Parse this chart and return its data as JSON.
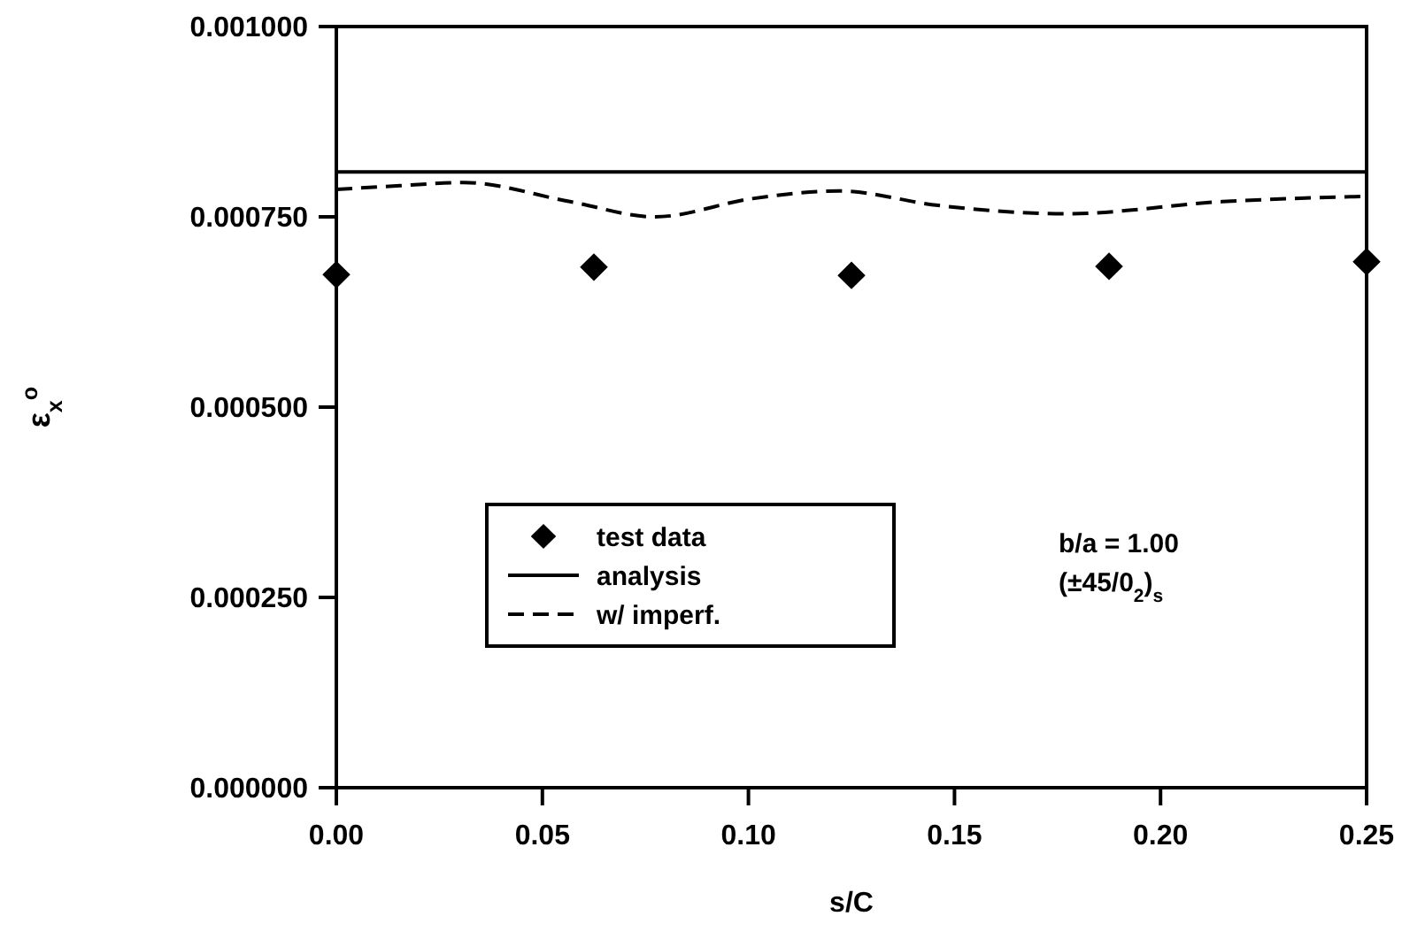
{
  "chart_data": {
    "type": "scatter",
    "xlabel": "s/C",
    "ylabel": "ε$_{x}$$^{o}$",
    "xlim": [
      0,
      0.25
    ],
    "xticks": [
      {
        "value": 0,
        "label": "0.00"
      },
      {
        "value": 0.05,
        "label": "0.05"
      },
      {
        "value": 0.1,
        "label": "0.10"
      },
      {
        "value": 0.15,
        "label": "0.15"
      },
      {
        "value": 0.2,
        "label": "0.20"
      },
      {
        "value": 0.25,
        "label": "0.25"
      }
    ],
    "ylim": [
      0,
      0.001
    ],
    "yticks": [
      {
        "value": 0,
        "label": "0.000000"
      },
      {
        "value": 0.00025,
        "label": "0.000250"
      },
      {
        "value": 0.0005,
        "label": "0.000500"
      },
      {
        "value": 0.00075,
        "label": "0.000750"
      },
      {
        "value": 0.001,
        "label": "0.001000"
      }
    ],
    "grid": false,
    "legend": "bottom left",
    "annotations": [
      "b/a = 1.00",
      "(±45/0$_{2}$)$_{s}$"
    ],
    "series": [
      {
        "name": "test data",
        "marker": "diamond",
        "color": "#000000",
        "x": [
          0,
          0.0625,
          0.125,
          0.1875,
          0.25
        ],
        "values": [
          0.000674,
          0.000684,
          0.000673,
          0.000685,
          0.000691
        ]
      },
      {
        "name": "analysis",
        "type": "line",
        "marker": "none",
        "line_style": "solid",
        "color": "#000000",
        "x": [
          0,
          0.25
        ],
        "values": [
          0.000809,
          0.000809
        ]
      },
      {
        "name": "w/ imperf.",
        "type": "line",
        "marker": "none",
        "line_style": "dashed",
        "color": "#000000",
        "x": [
          0,
          0.0155,
          0.031,
          0.0567,
          0.0773,
          0.101,
          0.122,
          0.146,
          0.177,
          0.215,
          0.25
        ],
        "values": [
          0.000786,
          0.000791,
          0.000795,
          0.00077,
          0.00075,
          0.000774,
          0.000784,
          0.000765,
          0.000754,
          0.00077,
          0.000777
        ]
      }
    ]
  }
}
